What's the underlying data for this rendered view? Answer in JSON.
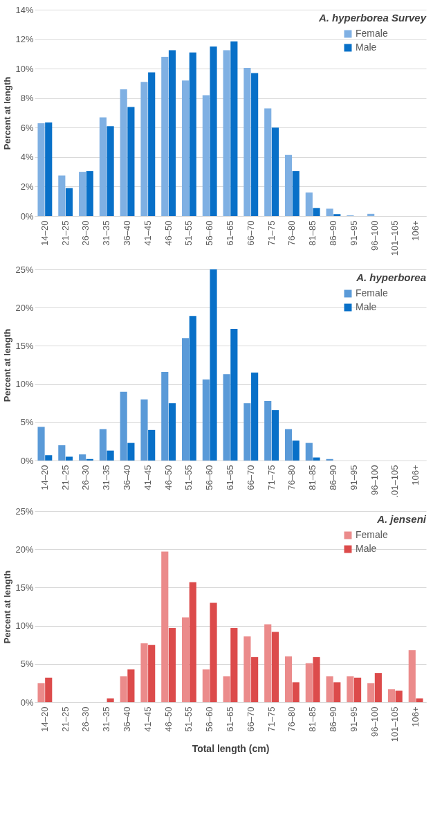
{
  "chart_data": [
    {
      "type": "bar",
      "title": "A. hyperborea Survey",
      "ylabel": "Percent at length",
      "categories": [
        "14–20",
        "21–25",
        "26–30",
        "31–35",
        "36–40",
        "41–45",
        "46–50",
        "51–55",
        "56–60",
        "61–65",
        "66–70",
        "71–75",
        "76–80",
        "81–85",
        "86–90",
        "91–95",
        "96–100",
        "101–105",
        "106+"
      ],
      "series": [
        {
          "name": "Female",
          "color": "#7fb0e3",
          "values": [
            6.3,
            2.75,
            3.0,
            6.7,
            8.6,
            9.1,
            10.8,
            9.2,
            8.2,
            11.25,
            10.05,
            7.3,
            4.15,
            1.6,
            0.5,
            0.05,
            0.15,
            0,
            0
          ]
        },
        {
          "name": "Male",
          "color": "#0870c8",
          "values": [
            6.35,
            1.9,
            3.05,
            6.1,
            7.4,
            9.75,
            11.25,
            11.1,
            11.5,
            11.85,
            9.7,
            6.0,
            3.05,
            0.55,
            0.13,
            0,
            0,
            0,
            0
          ]
        }
      ],
      "ylim": [
        0,
        14
      ],
      "yticks": [
        {
          "value": 0,
          "label": "0%"
        },
        {
          "value": 2,
          "label": "2%"
        },
        {
          "value": 4,
          "label": "4%"
        },
        {
          "value": 6,
          "label": "6%"
        },
        {
          "value": 8,
          "label": "8%"
        },
        {
          "value": 10,
          "label": "10%"
        },
        {
          "value": 12,
          "label": "12%"
        },
        {
          "value": 14,
          "label": "14%"
        }
      ],
      "grid": "y",
      "legend": "top right"
    },
    {
      "type": "bar",
      "title": "A. hyperborea",
      "ylabel": "Percent at length",
      "categories": [
        "14–20",
        "21–25",
        "26–30",
        "31–35",
        "36–40",
        "41–45",
        "46–50",
        "51–55",
        "56–60",
        "61–65",
        "66–70",
        "71–75",
        "76–80",
        "81–85",
        "86–90",
        "91–95",
        "96–100",
        ".01–105",
        "106+"
      ],
      "series": [
        {
          "name": "Female",
          "color": "#5a9ad8",
          "values": [
            4.4,
            2.0,
            0.8,
            4.1,
            9.0,
            8.0,
            11.6,
            16.0,
            10.6,
            11.3,
            7.5,
            7.8,
            4.1,
            2.3,
            0.2,
            0,
            0,
            0,
            0
          ]
        },
        {
          "name": "Male",
          "color": "#0870c8",
          "values": [
            0.7,
            0.5,
            0.2,
            1.3,
            2.3,
            4.0,
            7.5,
            18.9,
            25.0,
            17.2,
            11.5,
            6.6,
            2.6,
            0.4,
            0,
            0,
            0,
            0,
            0
          ]
        }
      ],
      "ylim": [
        0,
        25
      ],
      "yticks": [
        {
          "value": 0,
          "label": "0%"
        },
        {
          "value": 5,
          "label": "5%"
        },
        {
          "value": 10,
          "label": "10%"
        },
        {
          "value": 15,
          "label": "15%"
        },
        {
          "value": 20,
          "label": "20%"
        },
        {
          "value": 25,
          "label": "25%"
        }
      ],
      "grid": "y",
      "legend": "top right"
    },
    {
      "type": "bar",
      "title": "A. jenseni",
      "ylabel": "Percent at length",
      "xlabel": "Total length (cm)",
      "categories": [
        "14–20",
        "21–25",
        "26–30",
        "31–35",
        "36–40",
        "41–45",
        "46–50",
        "51–55",
        "56–60",
        "61–65",
        "66–70",
        "71–75",
        "76–80",
        "81–85",
        "86–90",
        "91–95",
        "96–100",
        "101–105",
        "106+"
      ],
      "series": [
        {
          "name": "Female",
          "color": "#eb8b8b",
          "values": [
            2.5,
            0,
            0,
            0,
            3.4,
            7.7,
            19.7,
            11.1,
            4.3,
            3.4,
            8.6,
            10.2,
            6.0,
            5.1,
            3.4,
            3.4,
            2.5,
            1.7,
            6.8
          ]
        },
        {
          "name": "Male",
          "color": "#dc4b4b",
          "values": [
            3.2,
            0,
            0,
            0.5,
            4.3,
            7.5,
            9.7,
            15.7,
            13.0,
            9.7,
            5.9,
            9.2,
            2.6,
            5.9,
            2.6,
            3.2,
            3.8,
            1.5,
            0.5
          ]
        }
      ],
      "ylim": [
        0,
        25
      ],
      "yticks": [
        {
          "value": 0,
          "label": "0%"
        },
        {
          "value": 5,
          "label": "5%"
        },
        {
          "value": 10,
          "label": "10%"
        },
        {
          "value": 15,
          "label": "15%"
        },
        {
          "value": 20,
          "label": "20%"
        },
        {
          "value": 25,
          "label": "25%"
        }
      ],
      "grid": "y",
      "legend": "top right"
    }
  ]
}
